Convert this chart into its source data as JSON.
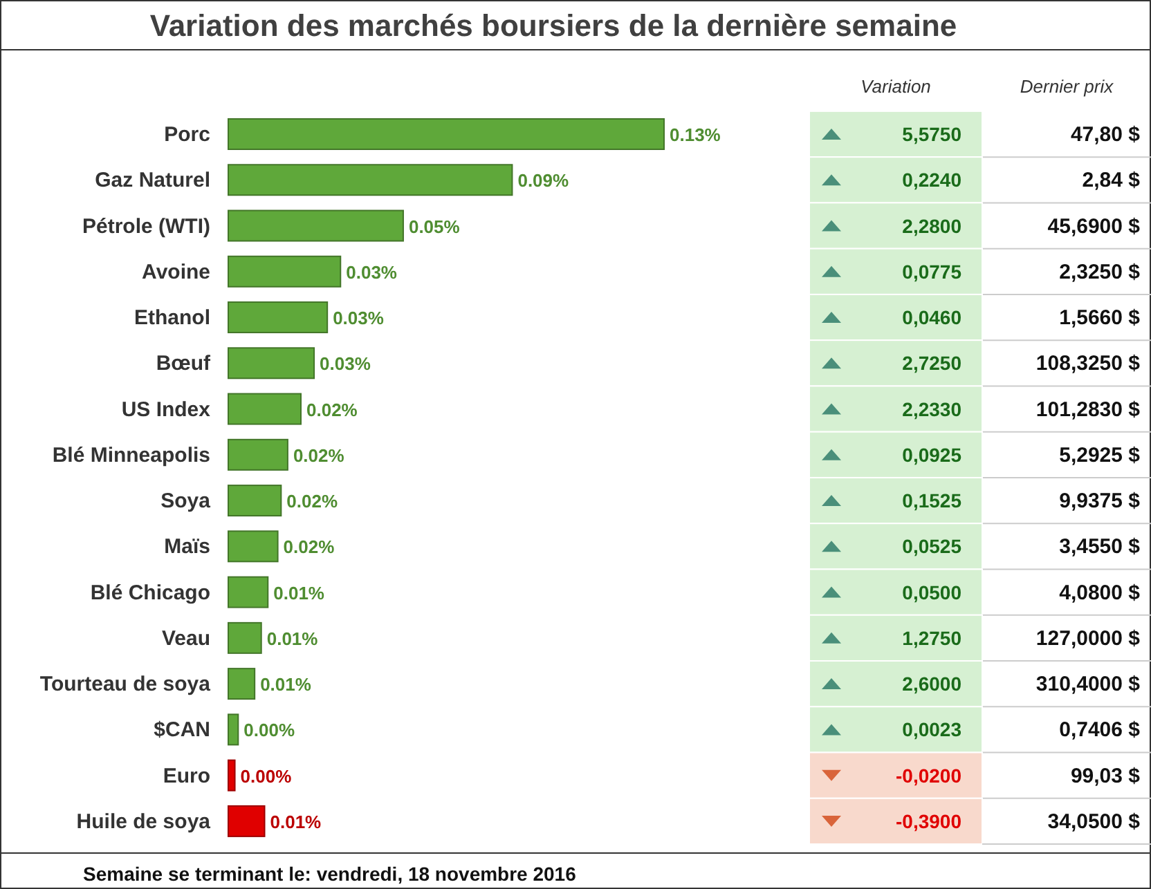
{
  "chart_data": [
    {
      "type": "bar",
      "orientation": "horizontal",
      "title": "Variation des marchés boursiers de la dernière semaine",
      "categories": [
        "Porc",
        "Gaz Naturel",
        "Pétrole (WTI)",
        "Avoine",
        "Ethanol",
        "Bœuf",
        "US Index",
        "Blé Minneapolis",
        "Soya",
        "Maïs",
        "Blé Chicago",
        "Veau",
        "Tourteau de soya",
        "$CAN",
        "Euro",
        "Huile de soya"
      ],
      "values": [
        0.132,
        0.086,
        0.053,
        0.034,
        0.03,
        0.026,
        0.022,
        0.018,
        0.016,
        0.015,
        0.012,
        0.01,
        0.008,
        0.003,
        0.002,
        0.011
      ],
      "value_labels": [
        "0.13%",
        "0.09%",
        "0.05%",
        "0.03%",
        "0.03%",
        "0.03%",
        "0.02%",
        "0.02%",
        "0.02%",
        "0.02%",
        "0.01%",
        "0.01%",
        "0.01%",
        "0.00%",
        "0.00%",
        "0.01%"
      ],
      "colors": [
        "#5fa83a",
        "#5fa83a",
        "#5fa83a",
        "#5fa83a",
        "#5fa83a",
        "#5fa83a",
        "#5fa83a",
        "#5fa83a",
        "#5fa83a",
        "#5fa83a",
        "#5fa83a",
        "#5fa83a",
        "#5fa83a",
        "#5fa83a",
        "#e00000",
        "#e00000"
      ],
      "annotations": [
        "Semaine se terminant le: vendredi, 18 novembre 2016"
      ]
    },
    {
      "type": "other",
      "categories": [
        "Variation",
        "Dernier prix"
      ],
      "cell_labels": [
        [
          "5,5750",
          "47,80 $"
        ],
        [
          "0,2240",
          "2,84 $"
        ],
        [
          "2,2800",
          "45,6900 $"
        ],
        [
          "0,0775",
          "2,3250 $"
        ],
        [
          "0,0460",
          "1,5660 $"
        ],
        [
          "2,7250",
          "108,3250 $"
        ],
        [
          "2,2330",
          "101,2830 $"
        ],
        [
          "0,0925",
          "5,2925 $"
        ],
        [
          "0,1525",
          "9,9375 $"
        ],
        [
          "0,0525",
          "3,4550 $"
        ],
        [
          "0,0500",
          "4,0800 $"
        ],
        [
          "1,2750",
          "127,0000 $"
        ],
        [
          "2,6000",
          "310,4000 $"
        ],
        [
          "0,0023",
          "0,7406 $"
        ],
        [
          "-0,0200",
          "99,03 $"
        ],
        [
          "-0,3900",
          "34,0500 $"
        ]
      ]
    }
  ]
}
